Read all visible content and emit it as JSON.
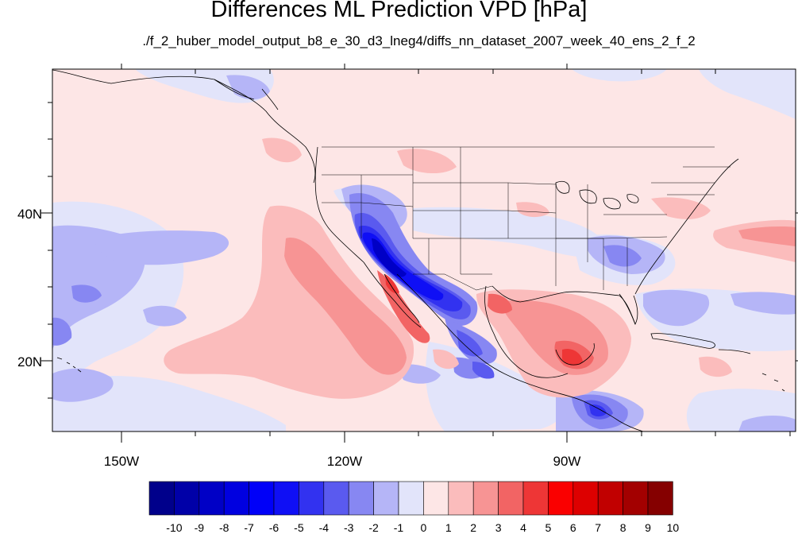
{
  "title": "Differences ML Prediction VPD [hPa]",
  "subtitle": "./f_2_huber_model_output_b8_e_30_d3_lneg4/diffs_nn_dataset_2007_week_40_ens_2_f_2",
  "map": {
    "lon_range": [
      -159.5,
      -60
    ],
    "lat_range": [
      10.5,
      59.5
    ],
    "lat_ticks": [
      {
        "label": "40N",
        "value": 40
      },
      {
        "label": "20N",
        "value": 20
      }
    ],
    "lon_ticks": [
      {
        "label": "150W",
        "value": -150
      },
      {
        "label": "120W",
        "value": -120
      },
      {
        "label": "90W",
        "value": -90
      }
    ],
    "background_level": "0 to 1 (light pink)"
  },
  "colorbar": {
    "labels": [
      "-10",
      "-9",
      "-8",
      "-7",
      "-6",
      "-5",
      "-4",
      "-3",
      "-2",
      "-1",
      "0",
      "1",
      "2",
      "3",
      "4",
      "5",
      "6",
      "7",
      "8",
      "9",
      "10"
    ],
    "colors": [
      "#00008b",
      "#0000a8",
      "#0000c6",
      "#0000e0",
      "#0000f8",
      "#0f0ff5",
      "#3232f0",
      "#5a5aef",
      "#8787f2",
      "#b5b5f7",
      "#e2e4fa",
      "#fde6e6",
      "#fbbcbc",
      "#f79494",
      "#f26464",
      "#ee3636",
      "#fa0000",
      "#dd0000",
      "#c10000",
      "#a30000",
      "#850000"
    ]
  }
}
